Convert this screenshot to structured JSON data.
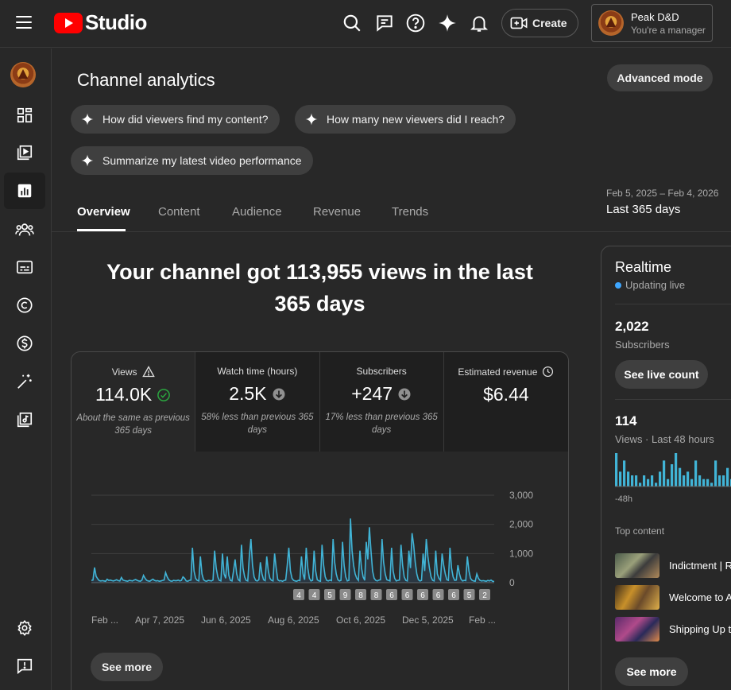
{
  "header": {
    "logo_text": "Studio",
    "create_label": "Create",
    "account": {
      "name": "Peak D&D",
      "role": "You're a manager"
    }
  },
  "page": {
    "title": "Channel analytics",
    "advanced_mode": "Advanced mode",
    "prompts": [
      "How did viewers find my content?",
      "How many new viewers did I reach?",
      "Summarize my latest video performance"
    ],
    "tabs": [
      "Overview",
      "Content",
      "Audience",
      "Revenue",
      "Trends"
    ],
    "date_range": {
      "dates": "Feb 5, 2025 – Feb 4, 2026",
      "label": "Last 365 days"
    },
    "headline": "Your channel got 113,955 views in the last 365 days"
  },
  "metrics": [
    {
      "label": "Views",
      "value": "114.0K",
      "note": "About the same as previous 365 days",
      "label_icon": "warning-icon",
      "value_icon": "check-circle-icon"
    },
    {
      "label": "Watch time (hours)",
      "value": "2.5K",
      "note": "58% less than previous 365 days",
      "value_icon": "arrow-down-circle-icon"
    },
    {
      "label": "Subscribers",
      "value": "+247",
      "note": "17% less than previous 365 days",
      "value_icon": "arrow-down-circle-icon"
    },
    {
      "label": "Estimated revenue",
      "value": "$6.44",
      "note": "",
      "label_icon": "clock-icon"
    }
  ],
  "chart_data": {
    "type": "line",
    "x_labels": [
      "Feb ...",
      "Apr 7, 2025",
      "Jun 6, 2025",
      "Aug 6, 2025",
      "Oct 6, 2025",
      "Dec 5, 2025",
      "Feb ..."
    ],
    "y_ticks": [
      "3,000",
      "2,000",
      "1,000",
      "0"
    ],
    "ylim": [
      0,
      3000
    ],
    "series": [
      {
        "values": [
          80,
          90,
          520,
          220,
          130,
          70,
          60,
          70,
          60,
          50,
          120,
          80,
          90,
          70,
          60,
          80,
          100,
          70,
          60,
          180,
          90,
          70,
          60,
          50,
          80,
          70,
          60,
          90,
          110,
          80,
          60,
          50,
          90,
          250,
          150,
          80,
          60,
          50,
          90,
          120,
          80,
          60,
          70,
          50,
          60,
          80,
          90,
          350,
          200,
          100,
          60,
          50,
          80,
          70,
          70,
          90,
          60,
          80,
          200,
          150,
          60,
          50,
          80,
          90,
          1200,
          400,
          150,
          80,
          60,
          900,
          300,
          100,
          60,
          50,
          80,
          70,
          60,
          90,
          1100,
          500,
          200,
          80,
          60,
          1000,
          300,
          150,
          900,
          250,
          80,
          60,
          400,
          800,
          300,
          100,
          60,
          1300,
          500,
          200,
          80,
          60,
          900,
          1500,
          600,
          200,
          80,
          60,
          100,
          700,
          300,
          100,
          70,
          900,
          400,
          150,
          80,
          60,
          1000,
          500,
          100,
          60,
          70,
          50,
          80,
          90,
          600,
          1200,
          400,
          150,
          80,
          60,
          50,
          80,
          70,
          900,
          300,
          100,
          1200,
          500,
          150,
          60,
          80,
          1100,
          400,
          100,
          60,
          50,
          1300,
          600,
          200,
          80,
          60,
          90,
          70,
          1500,
          700,
          300,
          100,
          60,
          80,
          1400,
          600,
          200,
          60,
          80,
          2200,
          1100,
          600,
          300,
          150,
          80,
          1100,
          500,
          200,
          80,
          1400,
          800,
          1900,
          1100,
          400,
          150,
          80,
          60,
          90,
          100,
          1500,
          700,
          300,
          100,
          80,
          60,
          1200,
          400,
          150,
          60,
          80,
          90,
          1300,
          600,
          200,
          80,
          60,
          1100,
          500,
          1700,
          1300,
          700,
          300,
          100,
          60,
          80,
          1000,
          400,
          1500,
          900,
          500,
          200,
          80,
          60,
          1100,
          300,
          150,
          80,
          1000,
          600,
          300,
          100,
          80,
          1200,
          500,
          200,
          80,
          90,
          600,
          300,
          120,
          60,
          80,
          70,
          900,
          400,
          150,
          80,
          60,
          50,
          300,
          150,
          80,
          60,
          70,
          60,
          50,
          80,
          60,
          90,
          50,
          40
        ]
      }
    ],
    "annotation_markers": [
      "4",
      "4",
      "5",
      "9",
      "8",
      "8",
      "6",
      "6",
      "6",
      "6",
      "6",
      "5",
      "2"
    ]
  },
  "see_more_label": "See more",
  "realtime": {
    "title": "Realtime",
    "status": "Updating live",
    "subscribers_value": "2,022",
    "subscribers_label": "Subscribers",
    "live_count_button": "See live count",
    "views_value": "114",
    "views_label": "Views · Last 48 hours",
    "bars_axis_label": "-48h",
    "bars": [
      9,
      4,
      7,
      4,
      3,
      3,
      1,
      3,
      2,
      3,
      1,
      4,
      7,
      2,
      6,
      9,
      5,
      3,
      4,
      2,
      7,
      3,
      2,
      2,
      1,
      7,
      3,
      3,
      5,
      2,
      1,
      4,
      1,
      2
    ],
    "top_content_label": "Top content",
    "top_content": [
      {
        "title": "Indictment | R"
      },
      {
        "title": "Welcome to A"
      },
      {
        "title": "Shipping Up to"
      }
    ],
    "see_more": "See more"
  }
}
